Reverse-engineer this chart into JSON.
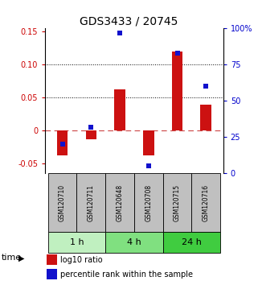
{
  "title": "GDS3433 / 20745",
  "samples": [
    "GSM120710",
    "GSM120711",
    "GSM120648",
    "GSM120708",
    "GSM120715",
    "GSM120716"
  ],
  "log10_ratio": [
    -0.038,
    -0.013,
    0.063,
    -0.038,
    0.12,
    0.04
  ],
  "percentile_rank": [
    20,
    32,
    97,
    5.5,
    83,
    60
  ],
  "time_groups": [
    {
      "label": "1 h",
      "indices": [
        0,
        1
      ],
      "color": "#c0f0c0"
    },
    {
      "label": "4 h",
      "indices": [
        2,
        3
      ],
      "color": "#80e080"
    },
    {
      "label": "24 h",
      "indices": [
        4,
        5
      ],
      "color": "#40cc40"
    }
  ],
  "ylim_left": [
    -0.065,
    0.155
  ],
  "ylim_right": [
    0,
    100
  ],
  "yticks_left": [
    -0.05,
    0.0,
    0.05,
    0.1,
    0.15
  ],
  "yticks_right": [
    0,
    25,
    50,
    75,
    100
  ],
  "ytick_labels_left": [
    "-0.05",
    "0",
    "0.05",
    "0.10",
    "0.15"
  ],
  "ytick_labels_right": [
    "0",
    "25",
    "50",
    "75",
    "100%"
  ],
  "hlines_dotted": [
    0.05,
    0.1
  ],
  "zero_line_color": "#cc4444",
  "bar_color": "#cc1111",
  "dot_color": "#1111cc",
  "bg_color_samples": "#c0c0c0",
  "sample_font_size": 5.5,
  "time_font_size": 8,
  "title_font_size": 10
}
